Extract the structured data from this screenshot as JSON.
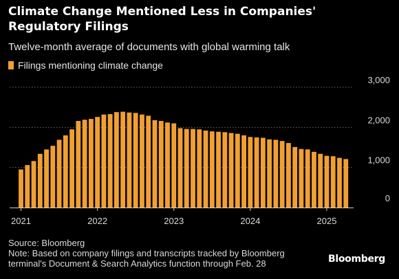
{
  "header": {
    "title": "Climate Change Mentioned Less in Companies' Regulatory Filings",
    "subtitle": "Twelve-month average of documents with global warming talk"
  },
  "legend": {
    "label": "Filings mentioning climate change",
    "color": "#f0a033"
  },
  "footer": {
    "source": "Source: Bloomberg",
    "note_line1": "Note: Based on company filings and transcripts tracked by Bloomberg",
    "note_line2": "terminal's Document & Search Analytics function through Feb. 28",
    "brand": "Bloomberg"
  },
  "chart_data": {
    "type": "bar",
    "ylim": [
      0,
      3000
    ],
    "yticks": [
      {
        "value": 0,
        "label": "0"
      },
      {
        "value": 1000,
        "label": "1,000"
      },
      {
        "value": 2000,
        "label": "2,000"
      },
      {
        "value": 3000,
        "label": "3,000"
      }
    ],
    "xticks": [
      {
        "month_index": 0,
        "label": "2021"
      },
      {
        "month_index": 12,
        "label": "2022"
      },
      {
        "month_index": 24,
        "label": "2023"
      },
      {
        "month_index": 36,
        "label": "2024"
      },
      {
        "month_index": 48,
        "label": "2025"
      }
    ],
    "grid": true,
    "legend_position": "top-left",
    "series": [
      {
        "name": "Filings mentioning climate change",
        "color": "#f0a033",
        "values": [
          950,
          1060,
          1160,
          1340,
          1450,
          1540,
          1690,
          1800,
          1950,
          2160,
          2190,
          2210,
          2260,
          2320,
          2330,
          2380,
          2390,
          2370,
          2360,
          2320,
          2290,
          2180,
          2160,
          2120,
          2100,
          1980,
          1960,
          1960,
          1950,
          1920,
          1900,
          1890,
          1880,
          1860,
          1840,
          1800,
          1760,
          1750,
          1740,
          1700,
          1690,
          1660,
          1610,
          1510,
          1460,
          1450,
          1390,
          1340,
          1290,
          1280,
          1240,
          1210
        ]
      }
    ]
  }
}
